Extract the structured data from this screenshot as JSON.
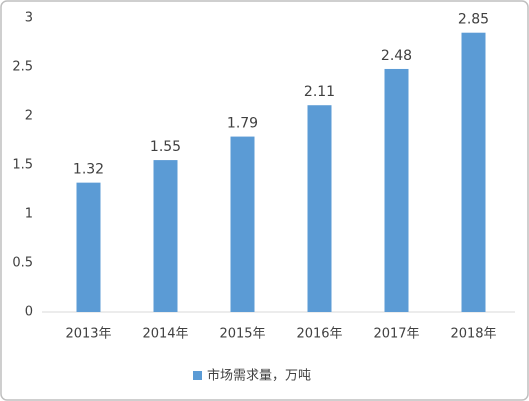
{
  "chart_data": {
    "type": "bar",
    "categories": [
      "2013年",
      "2014年",
      "2015年",
      "2016年",
      "2017年",
      "2018年"
    ],
    "series": [
      {
        "name": "市场需求量，万吨",
        "color": "#5b9bd5",
        "values": [
          1.32,
          1.55,
          1.79,
          2.11,
          2.48,
          2.85
        ]
      }
    ],
    "ylim": [
      0,
      3
    ],
    "yticks": [
      0,
      0.5,
      1,
      1.5,
      2,
      2.5,
      3
    ],
    "grid": false,
    "legend": "bottom",
    "data_labels": true
  }
}
